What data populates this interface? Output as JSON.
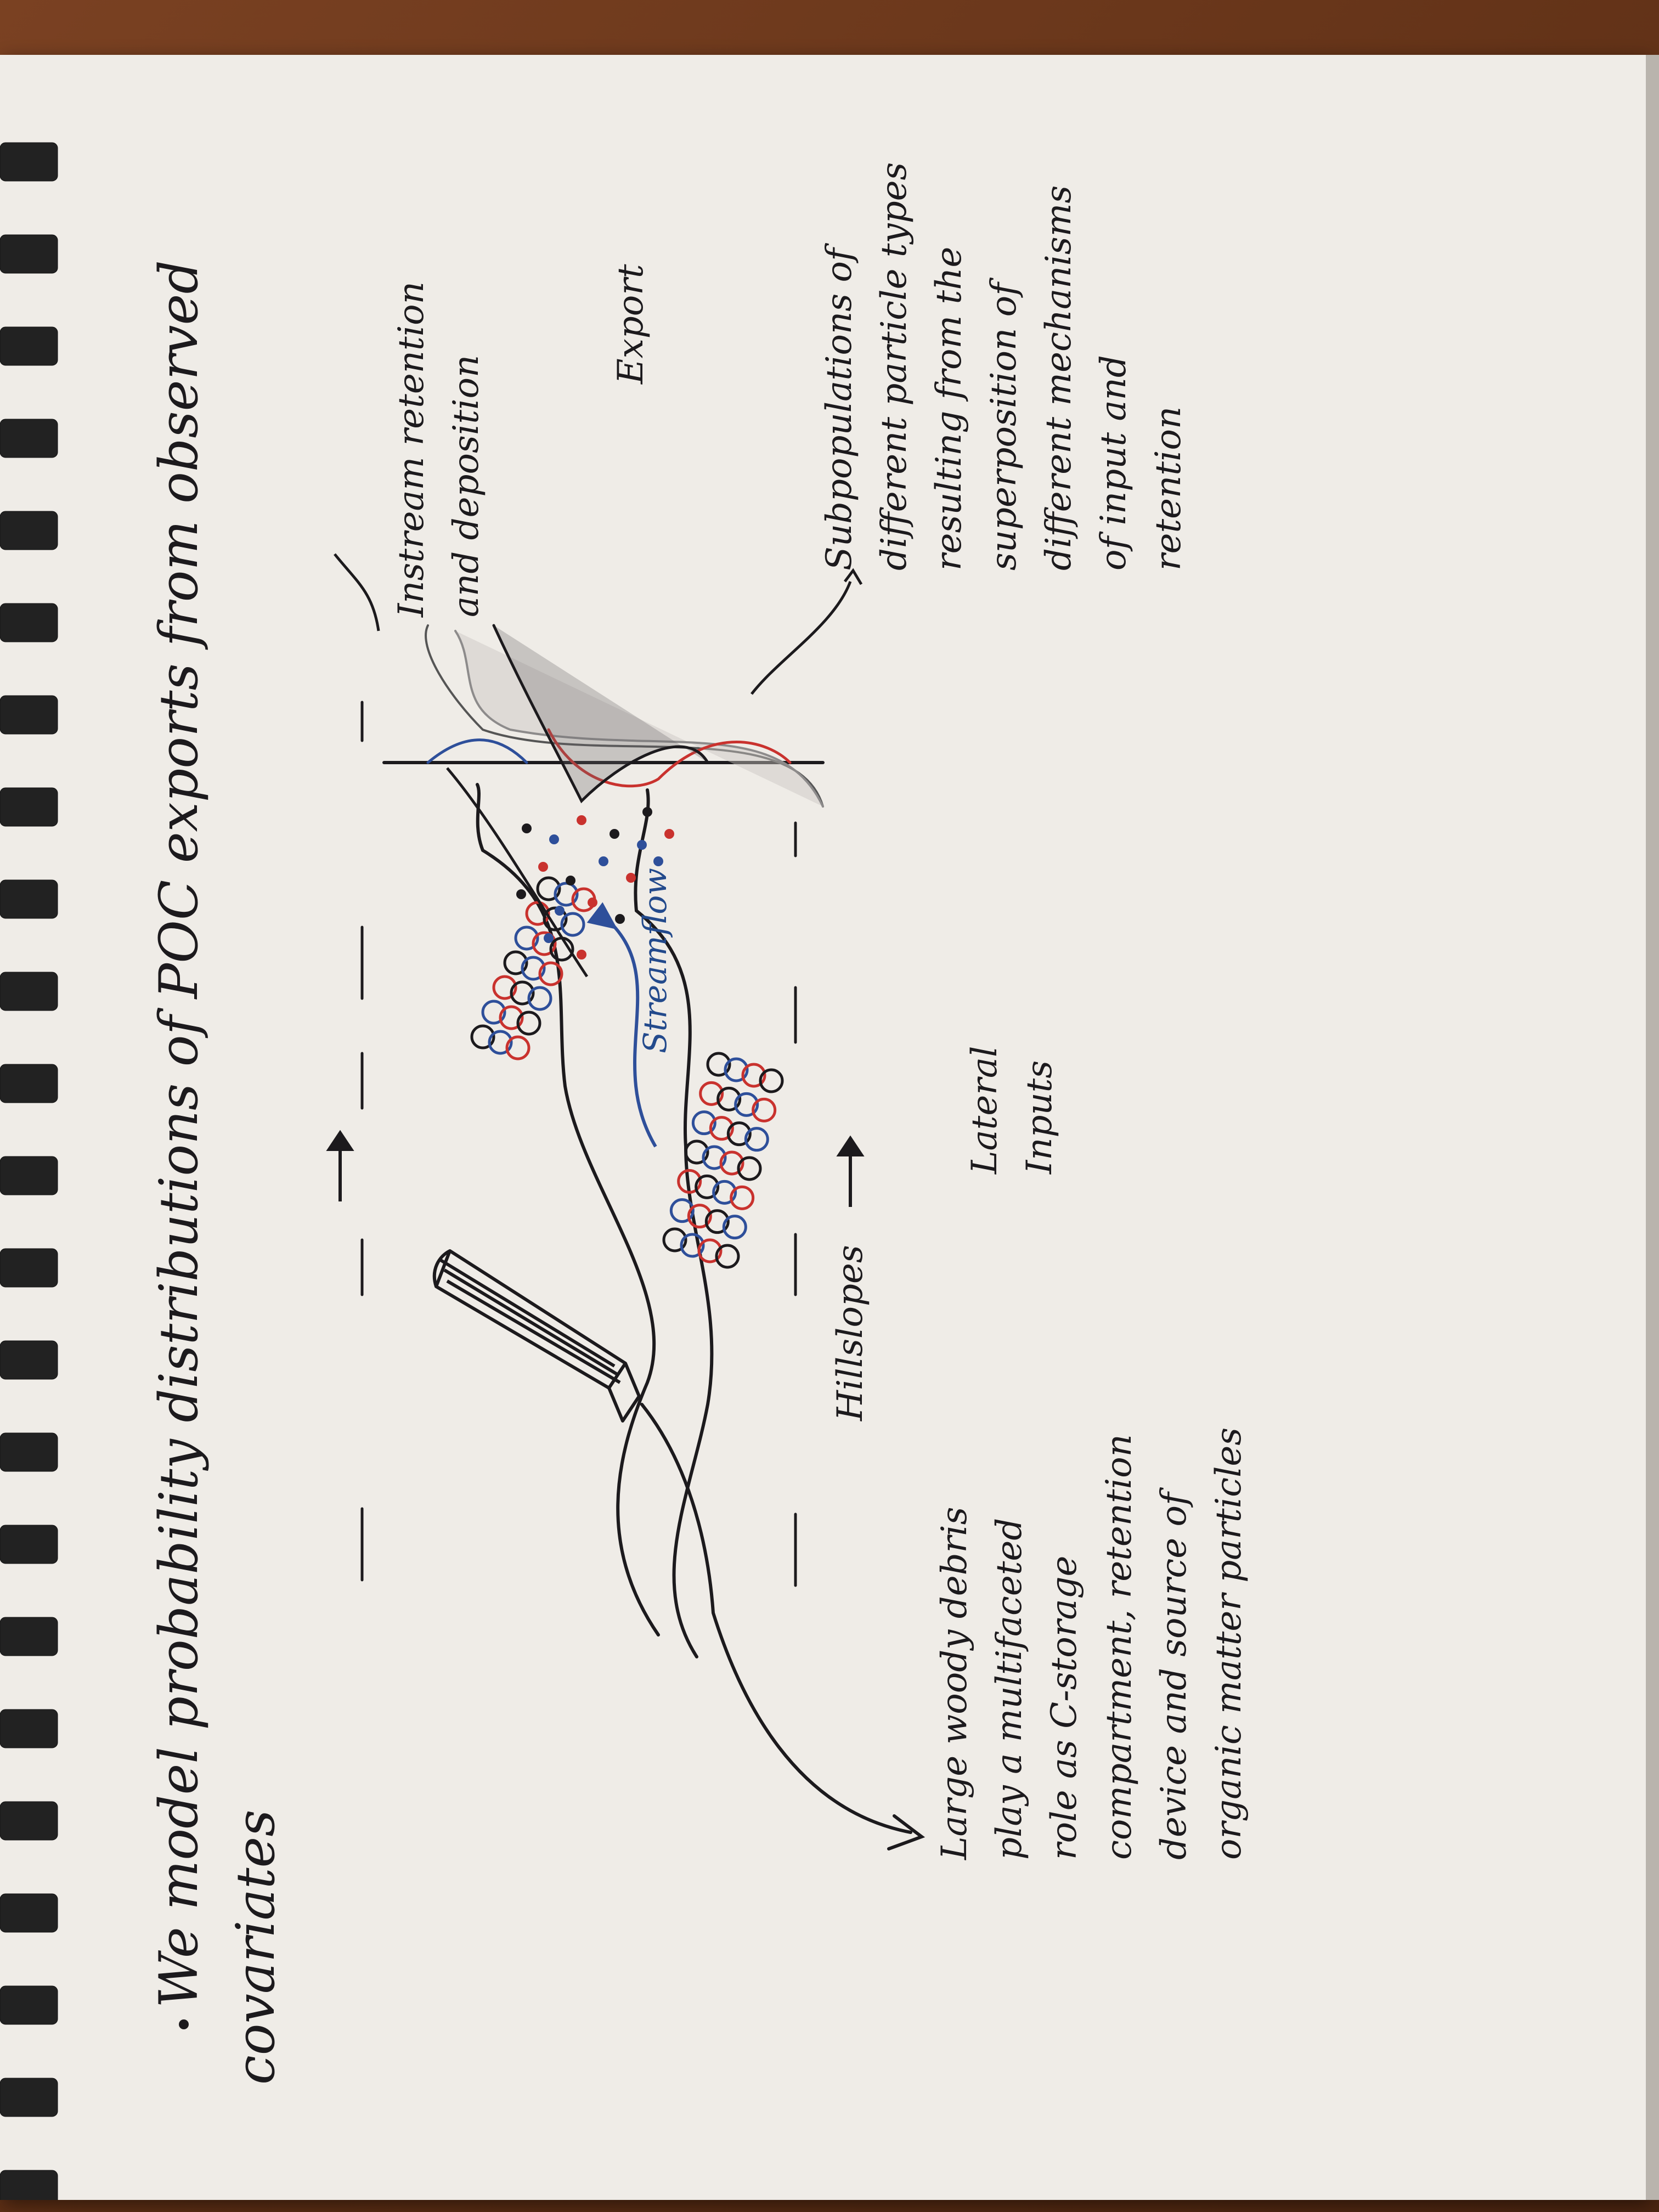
{
  "title": {
    "line1": "We model probability distributions of POC exports from observed",
    "line2": "covariates"
  },
  "labels": {
    "instream": "Instream retention\nand deposition",
    "export": "Export",
    "subpop": "Subpopulations of\ndifferent particle types\nresulting from the\nsuperposition of\ndifferent mechanisms\nof input and\nretention",
    "hillslopes": "Hillslopes",
    "lateral": "Lateral\nInputs",
    "streamflow": "Streamflow",
    "woody": "Large woody debris\nplay a multifaceted\nrole as C-storage\ncompartment, retention\ndevice and source of\norganic matter particles"
  },
  "colors": {
    "ink": "#1c1a1d",
    "blue": "#2e4f9a",
    "red": "#c9322e",
    "grey": "#8d8b8b",
    "paper": "#efece7"
  },
  "icons": {
    "spiral": "spiral-binding-icon",
    "log": "large-woody-debris-log-icon"
  }
}
